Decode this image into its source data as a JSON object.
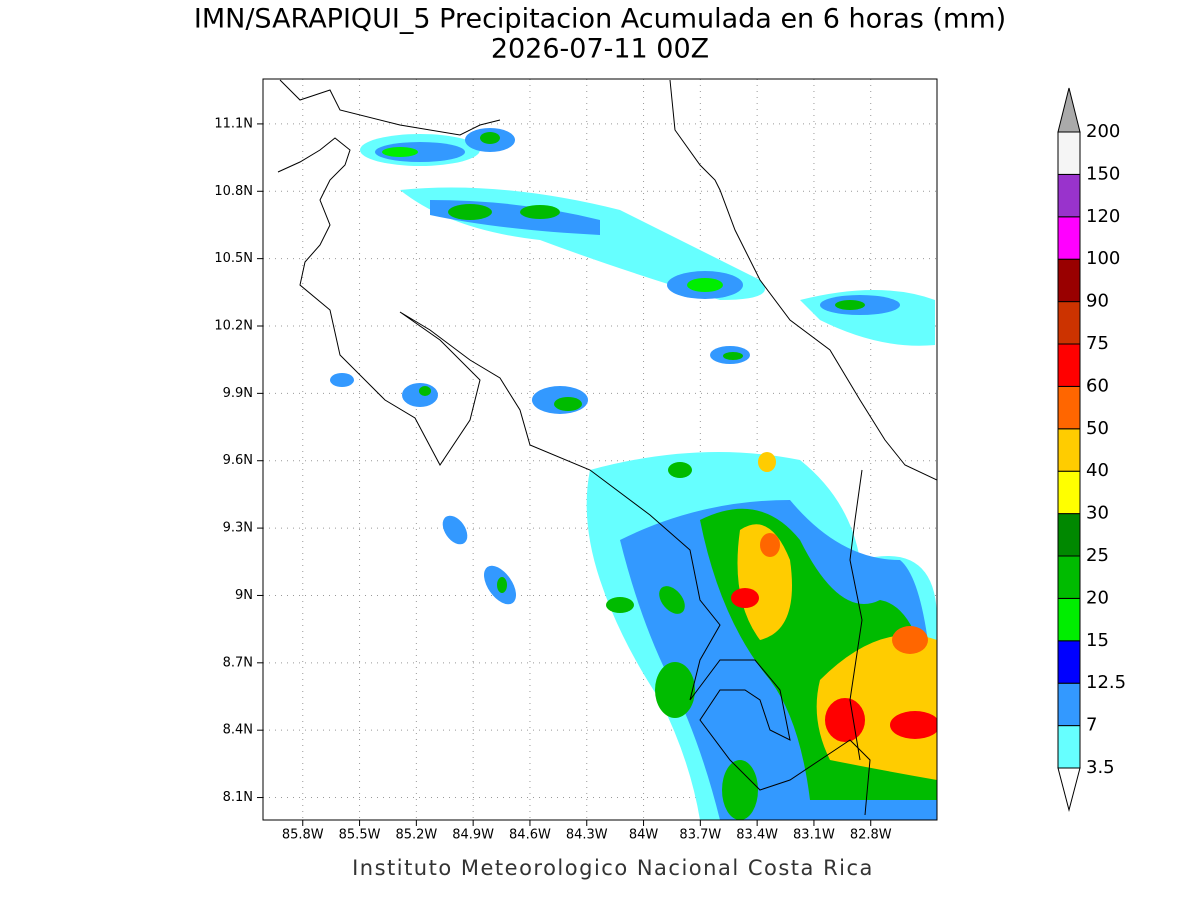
{
  "title": "IMN/SARAPIQUI_5 Precipitacion Acumulada en 6 horas (mm)",
  "subtitle": "2026-07-11 00Z",
  "footer": "Instituto Meteorologico Nacional Costa Rica",
  "map": {
    "xlim": [
      -86.01,
      -82.45
    ],
    "ylim": [
      8.0,
      11.3
    ],
    "grid": true,
    "xticks": [
      {
        "value": -85.8,
        "label": "85.8W"
      },
      {
        "value": -85.5,
        "label": "85.5W"
      },
      {
        "value": -85.2,
        "label": "85.2W"
      },
      {
        "value": -84.9,
        "label": "84.9W"
      },
      {
        "value": -84.6,
        "label": "84.6W"
      },
      {
        "value": -84.3,
        "label": "84.3W"
      },
      {
        "value": -84.0,
        "label": "84W"
      },
      {
        "value": -83.7,
        "label": "83.7W"
      },
      {
        "value": -83.4,
        "label": "83.4W"
      },
      {
        "value": -83.1,
        "label": "83.1W"
      },
      {
        "value": -82.8,
        "label": "82.8W"
      }
    ],
    "yticks": [
      {
        "value": 11.1,
        "label": "11.1N"
      },
      {
        "value": 10.8,
        "label": "10.8N"
      },
      {
        "value": 10.5,
        "label": "10.5N"
      },
      {
        "value": 10.2,
        "label": "10.2N"
      },
      {
        "value": 9.9,
        "label": "9.9N"
      },
      {
        "value": 9.6,
        "label": "9.6N"
      },
      {
        "value": 9.3,
        "label": "9.3N"
      },
      {
        "value": 9.0,
        "label": "9N"
      },
      {
        "value": 8.7,
        "label": "8.7N"
      },
      {
        "value": 8.4,
        "label": "8.4N"
      },
      {
        "value": 8.1,
        "label": "8.1N"
      }
    ]
  },
  "colorbar": {
    "levels": [
      3.5,
      7,
      12.5,
      15,
      20,
      25,
      30,
      40,
      50,
      60,
      75,
      90,
      100,
      120,
      150,
      200
    ],
    "colors": [
      "#66ffff",
      "#3399ff",
      "#0000ff",
      "#00ee00",
      "#00bb00",
      "#008800",
      "#ffff00",
      "#ffcc00",
      "#ff6600",
      "#ff0000",
      "#cc3300",
      "#990000",
      "#ff00ff",
      "#9933cc",
      "#f5f5f5"
    ],
    "under_color": "#ffffff",
    "over_color": "#aaaaaa"
  }
}
